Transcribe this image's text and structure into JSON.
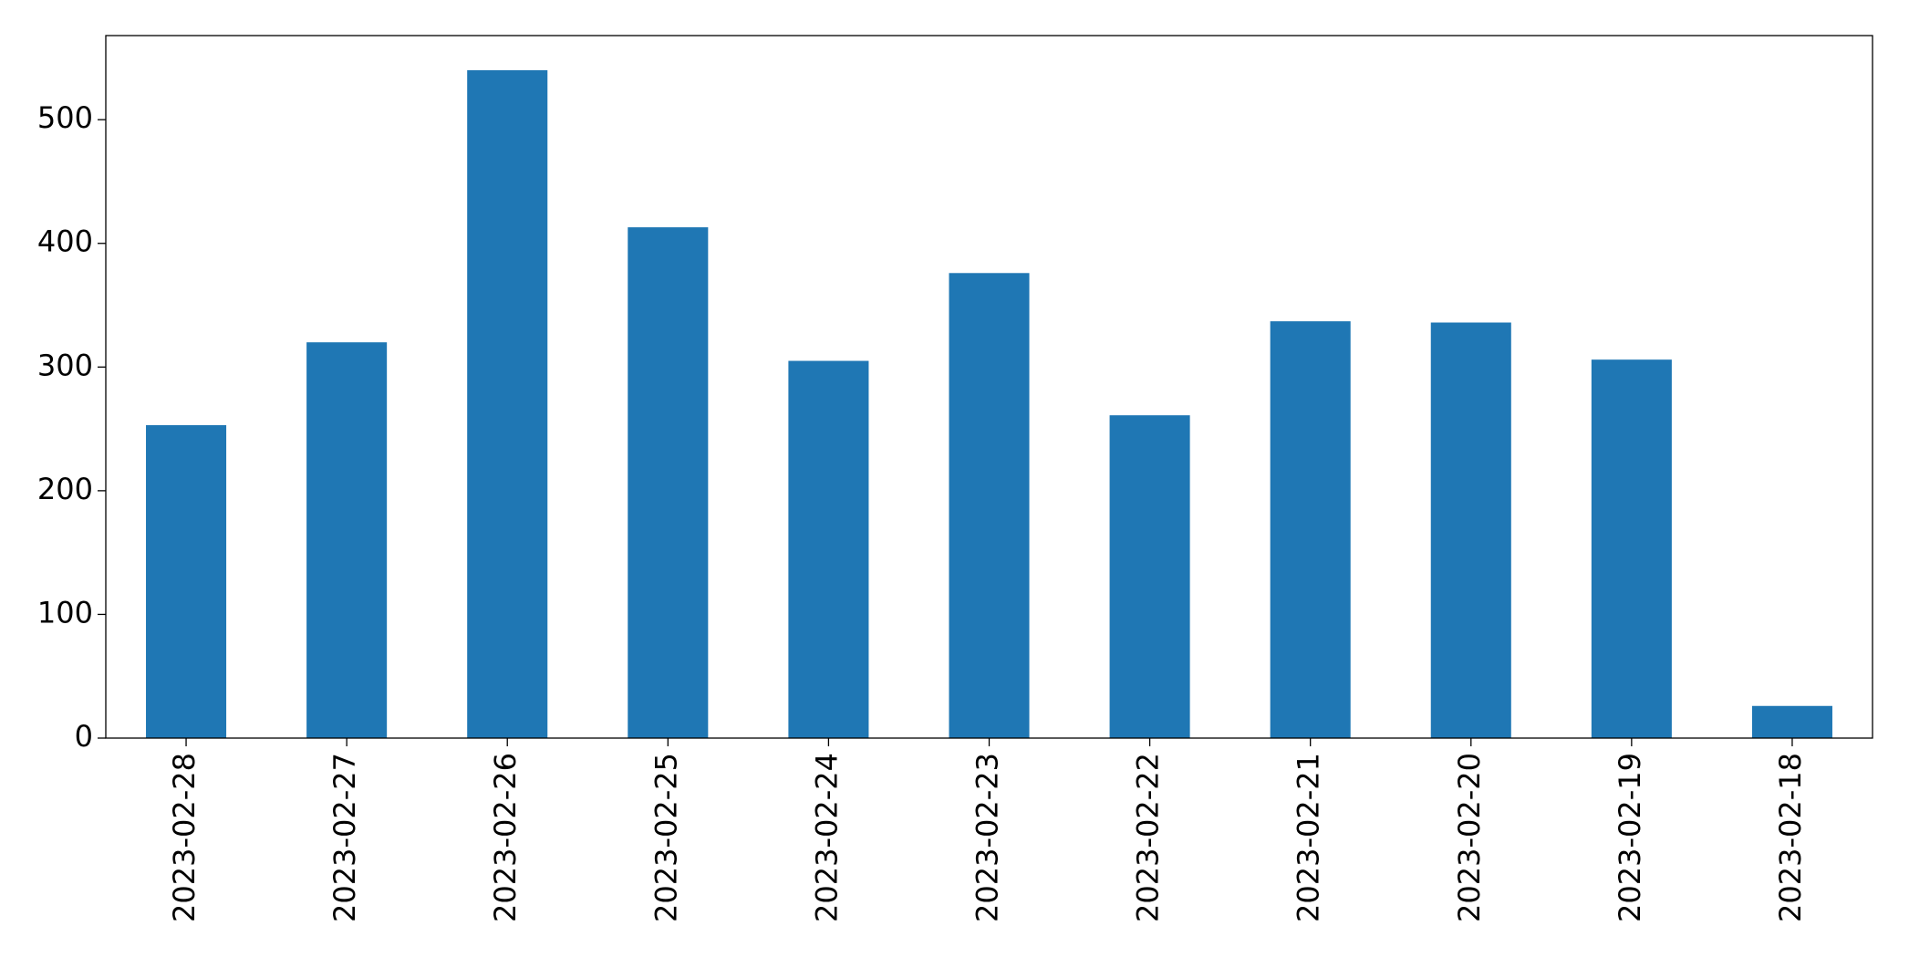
{
  "chart_data": {
    "type": "bar",
    "categories": [
      "2023-02-28",
      "2023-02-27",
      "2023-02-26",
      "2023-02-25",
      "2023-02-24",
      "2023-02-23",
      "2023-02-22",
      "2023-02-21",
      "2023-02-20",
      "2023-02-19",
      "2023-02-18"
    ],
    "values": [
      253,
      320,
      540,
      413,
      305,
      376,
      261,
      337,
      336,
      306,
      26
    ],
    "color": "#1f77b4",
    "ylim": [
      0,
      568
    ],
    "yticks": [
      0,
      100,
      200,
      300,
      400,
      500
    ],
    "grid": false
  }
}
